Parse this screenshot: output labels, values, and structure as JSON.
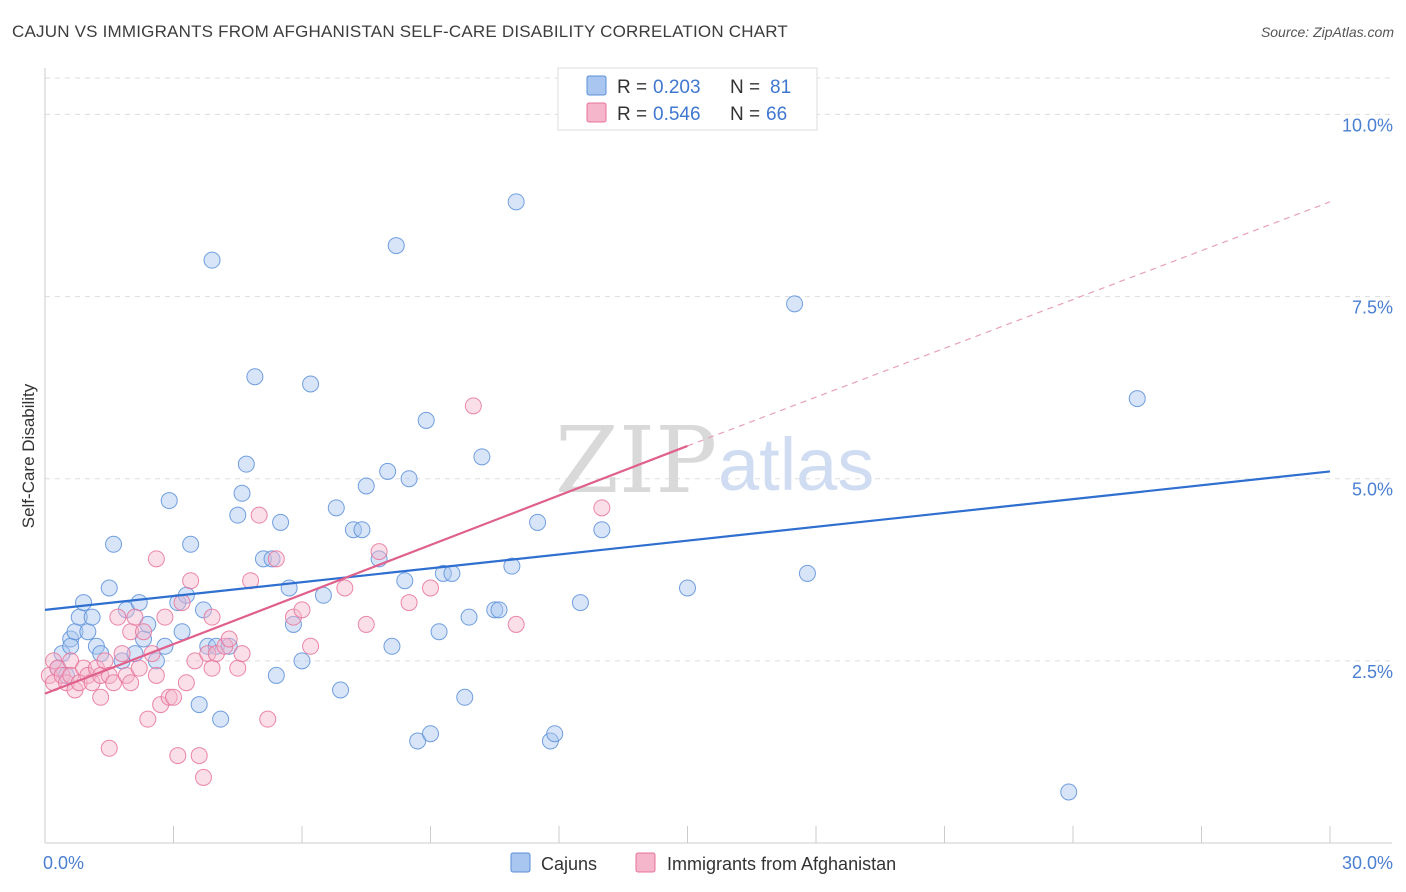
{
  "header": {
    "title": "CAJUN VS IMMIGRANTS FROM AFGHANISTAN SELF-CARE DISABILITY CORRELATION CHART",
    "source": "Source: ZipAtlas.com"
  },
  "watermark": {
    "zip": "ZIP",
    "atlas": "atlas"
  },
  "colors": {
    "cajun": "#5b8fd9",
    "cajun_fill": "#a9c6f0",
    "afghan": "#e8739a",
    "afghan_fill": "#f5b6cb",
    "tick_text": "#4a7fd1",
    "grid": "#dddddd"
  },
  "legend": {
    "rows": [
      {
        "r_label": "R =",
        "r_value": "0.203",
        "n_label": "N =",
        "n_value": "81"
      },
      {
        "r_label": "R =",
        "r_value": "0.546",
        "n_label": "N =",
        "n_value": "66"
      }
    ]
  },
  "bottom_legend": [
    "Cajuns",
    "Immigrants from Afghanistan"
  ],
  "chart_data": {
    "type": "scatter",
    "title": "CAJUN VS IMMIGRANTS FROM AFGHANISTAN SELF-CARE DISABILITY CORRELATION CHART",
    "ylabel": "Self-Care Disability",
    "xlabel": "",
    "xlim": [
      0,
      30
    ],
    "ylim": [
      0,
      10.5
    ],
    "x_ticks": [
      "0.0%",
      "30.0%"
    ],
    "y_ticks": [
      {
        "value": 2.5,
        "label": "2.5%"
      },
      {
        "value": 5.0,
        "label": "5.0%"
      },
      {
        "value": 7.5,
        "label": "7.5%"
      },
      {
        "value": 10.0,
        "label": "10.0%"
      }
    ],
    "grid": "horizontal-dashed",
    "legend_position": "top-center",
    "series": [
      {
        "name": "Cajuns",
        "r": 0.203,
        "n": 81,
        "trend": {
          "x0": 0,
          "y0": 3.2,
          "x1": 30,
          "y1": 5.1
        },
        "points": [
          [
            0.3,
            2.4
          ],
          [
            0.4,
            2.6
          ],
          [
            0.5,
            2.3
          ],
          [
            0.6,
            2.8
          ],
          [
            0.6,
            2.7
          ],
          [
            0.7,
            2.9
          ],
          [
            0.8,
            3.1
          ],
          [
            0.9,
            3.3
          ],
          [
            1.0,
            2.9
          ],
          [
            1.1,
            3.1
          ],
          [
            1.2,
            2.7
          ],
          [
            1.3,
            2.6
          ],
          [
            1.5,
            3.5
          ],
          [
            1.6,
            4.1
          ],
          [
            1.8,
            2.5
          ],
          [
            1.9,
            3.2
          ],
          [
            2.1,
            2.6
          ],
          [
            2.2,
            3.3
          ],
          [
            2.3,
            2.8
          ],
          [
            2.4,
            3.0
          ],
          [
            2.6,
            2.5
          ],
          [
            2.8,
            2.7
          ],
          [
            2.9,
            4.7
          ],
          [
            3.1,
            3.3
          ],
          [
            3.2,
            2.9
          ],
          [
            3.3,
            3.4
          ],
          [
            3.4,
            4.1
          ],
          [
            3.6,
            1.9
          ],
          [
            3.7,
            3.2
          ],
          [
            3.8,
            2.7
          ],
          [
            3.9,
            8.0
          ],
          [
            4.0,
            2.7
          ],
          [
            4.1,
            1.7
          ],
          [
            4.3,
            2.7
          ],
          [
            4.5,
            4.5
          ],
          [
            4.6,
            4.8
          ],
          [
            4.7,
            5.2
          ],
          [
            4.9,
            6.4
          ],
          [
            5.1,
            3.9
          ],
          [
            5.3,
            3.9
          ],
          [
            5.4,
            2.3
          ],
          [
            5.5,
            4.4
          ],
          [
            5.7,
            3.5
          ],
          [
            5.8,
            3.0
          ],
          [
            6.0,
            2.5
          ],
          [
            6.2,
            6.3
          ],
          [
            6.5,
            3.4
          ],
          [
            6.8,
            4.6
          ],
          [
            6.9,
            2.1
          ],
          [
            7.2,
            4.3
          ],
          [
            7.4,
            4.3
          ],
          [
            7.5,
            4.9
          ],
          [
            7.8,
            3.9
          ],
          [
            8.0,
            5.1
          ],
          [
            8.1,
            2.7
          ],
          [
            8.2,
            8.2
          ],
          [
            8.4,
            3.6
          ],
          [
            8.5,
            5.0
          ],
          [
            8.7,
            1.4
          ],
          [
            8.9,
            5.8
          ],
          [
            9.0,
            1.5
          ],
          [
            9.2,
            2.9
          ],
          [
            9.3,
            3.7
          ],
          [
            9.5,
            3.7
          ],
          [
            9.8,
            2.0
          ],
          [
            9.9,
            3.1
          ],
          [
            10.2,
            5.3
          ],
          [
            10.5,
            3.2
          ],
          [
            10.6,
            3.2
          ],
          [
            10.9,
            3.8
          ],
          [
            11.0,
            8.8
          ],
          [
            11.5,
            4.4
          ],
          [
            11.8,
            1.4
          ],
          [
            11.9,
            1.5
          ],
          [
            12.5,
            3.3
          ],
          [
            13.0,
            4.3
          ],
          [
            15.0,
            3.5
          ],
          [
            17.5,
            7.4
          ],
          [
            17.8,
            3.7
          ],
          [
            23.9,
            0.7
          ],
          [
            25.5,
            6.1
          ]
        ]
      },
      {
        "name": "Immigrants from Afghanistan",
        "r": 0.546,
        "n": 66,
        "trend": {
          "x0": 0,
          "y0": 2.05,
          "x1": 15,
          "y1": 5.45
        },
        "trend_extension": {
          "x0": 15,
          "y0": 5.45,
          "x1": 30,
          "y1": 8.8
        },
        "points": [
          [
            0.1,
            2.3
          ],
          [
            0.2,
            2.5
          ],
          [
            0.2,
            2.2
          ],
          [
            0.3,
            2.4
          ],
          [
            0.4,
            2.3
          ],
          [
            0.5,
            2.2
          ],
          [
            0.6,
            2.5
          ],
          [
            0.6,
            2.3
          ],
          [
            0.7,
            2.1
          ],
          [
            0.8,
            2.2
          ],
          [
            0.9,
            2.4
          ],
          [
            1.0,
            2.3
          ],
          [
            1.1,
            2.2
          ],
          [
            1.2,
            2.4
          ],
          [
            1.3,
            2.3
          ],
          [
            1.3,
            2.0
          ],
          [
            1.4,
            2.5
          ],
          [
            1.5,
            2.3
          ],
          [
            1.5,
            1.3
          ],
          [
            1.6,
            2.2
          ],
          [
            1.7,
            3.1
          ],
          [
            1.8,
            2.6
          ],
          [
            1.9,
            2.3
          ],
          [
            2.0,
            2.9
          ],
          [
            2.0,
            2.2
          ],
          [
            2.1,
            3.1
          ],
          [
            2.2,
            2.4
          ],
          [
            2.3,
            2.9
          ],
          [
            2.4,
            1.7
          ],
          [
            2.5,
            2.6
          ],
          [
            2.6,
            3.9
          ],
          [
            2.6,
            2.3
          ],
          [
            2.7,
            1.9
          ],
          [
            2.8,
            3.1
          ],
          [
            2.9,
            2.0
          ],
          [
            3.0,
            2.0
          ],
          [
            3.1,
            1.2
          ],
          [
            3.2,
            3.3
          ],
          [
            3.3,
            2.2
          ],
          [
            3.4,
            3.6
          ],
          [
            3.5,
            2.5
          ],
          [
            3.6,
            1.2
          ],
          [
            3.7,
            0.9
          ],
          [
            3.8,
            2.6
          ],
          [
            3.9,
            3.1
          ],
          [
            3.9,
            2.4
          ],
          [
            4.0,
            2.6
          ],
          [
            4.2,
            2.7
          ],
          [
            4.3,
            2.8
          ],
          [
            4.5,
            2.4
          ],
          [
            4.6,
            2.6
          ],
          [
            4.8,
            3.6
          ],
          [
            5.0,
            4.5
          ],
          [
            5.2,
            1.7
          ],
          [
            5.4,
            3.9
          ],
          [
            5.8,
            3.1
          ],
          [
            6.0,
            3.2
          ],
          [
            6.2,
            2.7
          ],
          [
            7.0,
            3.5
          ],
          [
            7.5,
            3.0
          ],
          [
            7.8,
            4.0
          ],
          [
            8.5,
            3.3
          ],
          [
            9.0,
            3.5
          ],
          [
            10.0,
            6.0
          ],
          [
            11.0,
            3.0
          ],
          [
            13.0,
            4.6
          ]
        ]
      }
    ]
  }
}
